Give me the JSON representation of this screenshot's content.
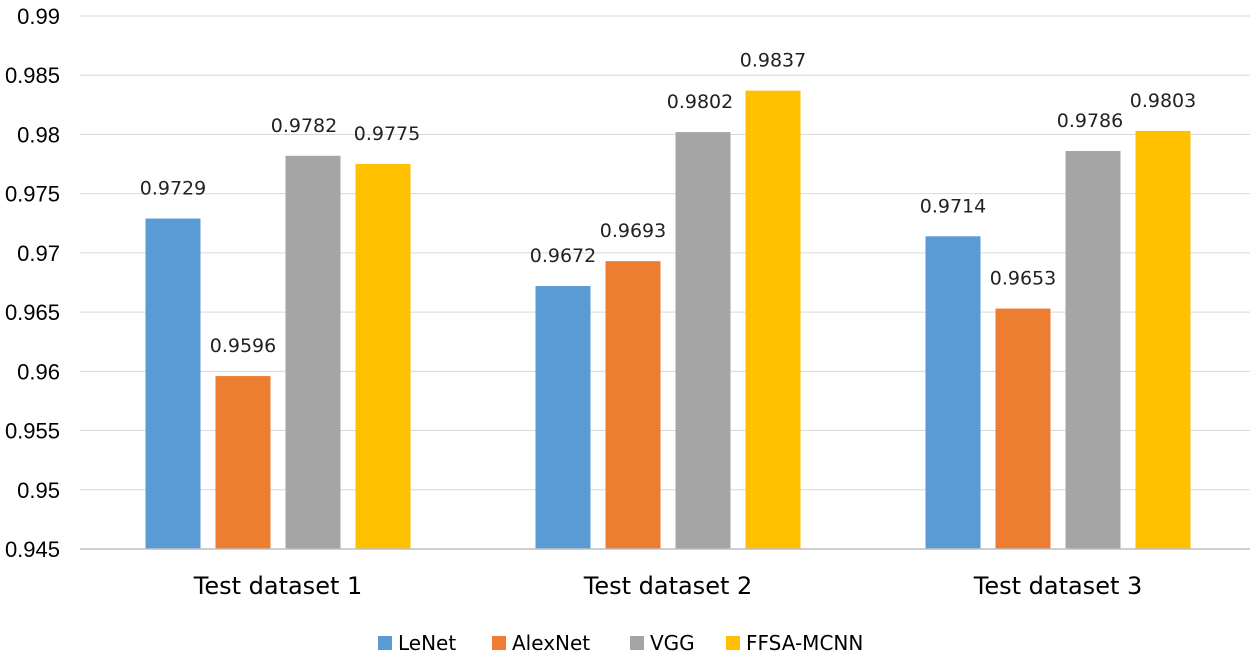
{
  "chart_data": {
    "type": "bar",
    "title": "",
    "xlabel": "",
    "ylabel": "",
    "categories": [
      "Test dataset 1",
      "Test dataset 2",
      "Test dataset 3"
    ],
    "series": [
      {
        "name": "LeNet",
        "color": "#5b9bd5",
        "values": [
          0.9729,
          0.9672,
          0.9714
        ],
        "labels": [
          "0.9729",
          "0.9672",
          "0.9714"
        ]
      },
      {
        "name": "AlexNet",
        "color": "#ed7d31",
        "values": [
          0.9596,
          0.9693,
          0.9653
        ],
        "labels": [
          "0.9596",
          "0.9693",
          "0.9653"
        ]
      },
      {
        "name": "VGG",
        "color": "#a5a5a5",
        "values": [
          0.9782,
          0.9802,
          0.9786
        ],
        "labels": [
          "0.9782",
          "0.9802",
          "0.9786"
        ]
      },
      {
        "name": "FFSA-MCNN",
        "color": "#ffc000",
        "values": [
          0.9775,
          0.9837,
          0.9803
        ],
        "labels": [
          "0.9775",
          "0.9837",
          "0.9803"
        ]
      }
    ],
    "ylim": [
      0.945,
      0.99
    ],
    "yticks": [
      "0.945",
      "0.95",
      "0.955",
      "0.96",
      "0.965",
      "0.97",
      "0.975",
      "0.98",
      "0.985",
      "0.99"
    ],
    "grid": true,
    "legend_position": "bottom-center"
  }
}
